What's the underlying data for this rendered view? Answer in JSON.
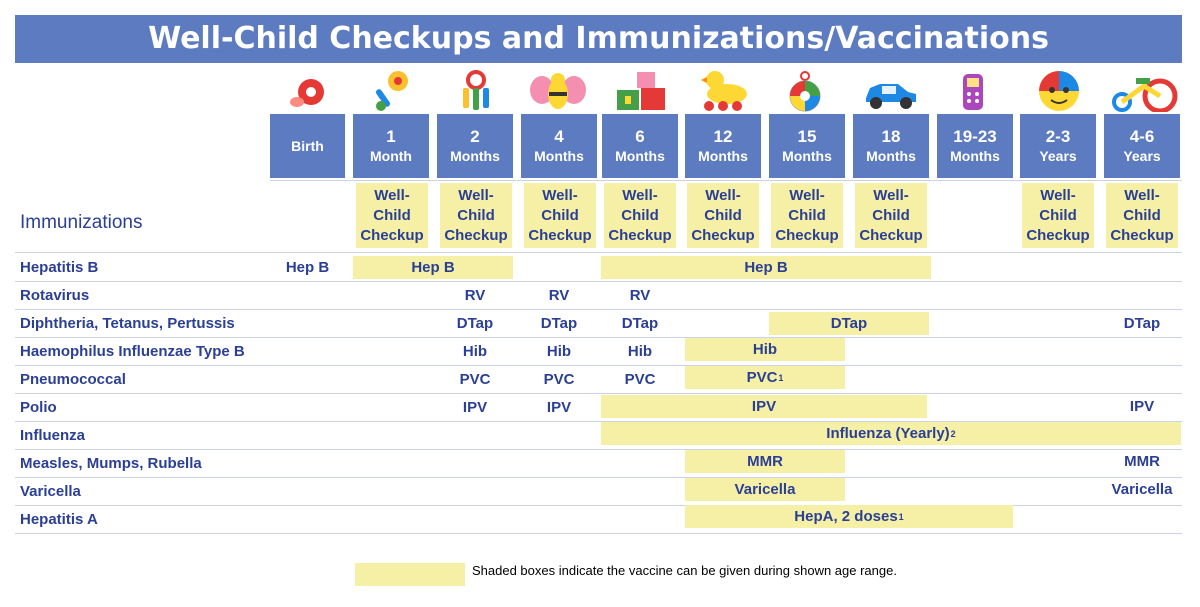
{
  "title": "Well-Child Checkups and Immunizations/Vaccinations",
  "ages": [
    {
      "num": "Birth",
      "unit": ""
    },
    {
      "num": "1",
      "unit": "Month"
    },
    {
      "num": "2",
      "unit": "Months"
    },
    {
      "num": "4",
      "unit": "Months"
    },
    {
      "num": "6",
      "unit": "Months"
    },
    {
      "num": "12",
      "unit": "Months"
    },
    {
      "num": "15",
      "unit": "Months"
    },
    {
      "num": "18",
      "unit": "Months"
    },
    {
      "num": "19-23",
      "unit": "Months"
    },
    {
      "num": "2-3",
      "unit": "Years"
    },
    {
      "num": "4-6",
      "unit": "Years"
    }
  ],
  "checkup_label": [
    "Well-",
    "Child",
    "Checkup"
  ],
  "immunizations_heading": "Immunizations",
  "rows": [
    {
      "label": "Hepatitis B",
      "cells": [
        "Hep B",
        "Hep B",
        "Hep B"
      ]
    },
    {
      "label": "Rotavirus",
      "cells": [
        "RV",
        "RV",
        "RV"
      ]
    },
    {
      "label": "Diphtheria, Tetanus, Pertussis",
      "cells": [
        "DTap",
        "DTap",
        "DTap",
        "DTap",
        "DTap"
      ]
    },
    {
      "label": "Haemophilus Influenzae Type B",
      "cells": [
        "Hib",
        "Hib",
        "Hib",
        "Hib"
      ]
    },
    {
      "label": "Pneumococcal",
      "cells": [
        "PVC",
        "PVC",
        "PVC",
        "PVC"
      ]
    },
    {
      "label": "Polio",
      "cells": [
        "IPV",
        "IPV",
        "IPV",
        "IPV"
      ]
    },
    {
      "label": "Influenza",
      "cells": [
        "Influenza (Yearly)"
      ]
    },
    {
      "label": "Measles, Mumps, Rubella",
      "cells": [
        "MMR",
        "MMR"
      ]
    },
    {
      "label": "Varicella",
      "cells": [
        "Varicella",
        "Varicella"
      ]
    },
    {
      "label": "Hepatitis A",
      "cells": [
        "HepA, 2 doses"
      ]
    }
  ],
  "footnotes": {
    "pvc": "1",
    "influenza": "2",
    "hepa": "1"
  },
  "legend": "Shaded boxes indicate the vaccine can be given during shown age range.",
  "icons": [
    "pacifier-icon",
    "rattle-icon",
    "toy-keys-icon",
    "bee-toy-icon",
    "blocks-icon",
    "duck-toy-icon",
    "teether-icon",
    "toy-car-icon",
    "toy-phone-icon",
    "ball-icon",
    "tricycle-icon"
  ],
  "colors": {
    "header_blue": "#5d7bc0",
    "shade_yellow": "#f5f0a6",
    "text_navy": "#2b3f95"
  }
}
